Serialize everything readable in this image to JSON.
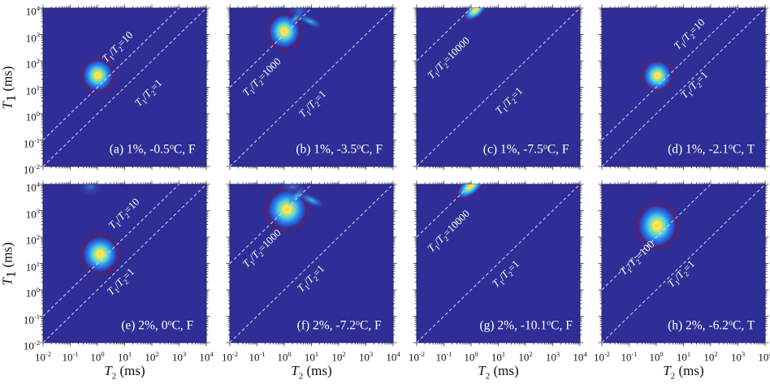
{
  "figure": {
    "description": "Eight-panel T1-T2 NMR correlation maps at different concentrations and temperatures",
    "background": "#ffffff"
  },
  "colors": {
    "panel_bg": "#2e2e96",
    "panel_border": "#23237d",
    "dashed_line": "#d8d8f8",
    "tick": "#2a2a2a",
    "axis_text": "#111111",
    "panel_text": "#ffffff",
    "blob_core": "#ffd23a",
    "blob_mid": "#46d2e8",
    "blob_outer": "#2f86e8",
    "blob_ring": "#701c52"
  },
  "axes": {
    "x_label_symbol": "T",
    "x_label_subscript": "2",
    "x_label_unit": " (ms)",
    "y_label_symbol": "T",
    "y_label_subscript": "1",
    "y_label_unit": " (ms)",
    "scale": "log-log",
    "x_range_ms": [
      0.01,
      10000
    ],
    "y_range_ms": [
      0.01,
      10000
    ],
    "x_tick_exponents": [
      -2,
      -1,
      0,
      1,
      2,
      3,
      4
    ],
    "y_tick_exponents": [
      4,
      3,
      2,
      1,
      0,
      -1,
      -2
    ]
  },
  "chart_data": {
    "type": "heatmap",
    "panels": [
      {
        "id": "a",
        "label": "(a) 1%, -0.5°C, F",
        "concentration": "1%",
        "temperature_c": -0.5,
        "state": "F",
        "peaks": [
          {
            "T2_ms": 1.0,
            "T1_ms": 28
          }
        ],
        "ratio_lines": [
          {
            "ratio": "10",
            "label_pos": [
              0.47,
              0.26
            ]
          },
          {
            "ratio": "1",
            "label_pos": [
              0.66,
              0.55
            ]
          }
        ],
        "blobs": [
          {
            "kind": "main",
            "logT2": 0.01,
            "logT1": 1.45,
            "rx": 0.7,
            "ry": 0.75,
            "rot": 0
          }
        ],
        "label_anchor": [
          0.67,
          0.915
        ]
      },
      {
        "id": "b",
        "label": "(b) 1%, -3.5°C, F",
        "concentration": "1%",
        "temperature_c": -3.5,
        "state": "F",
        "peaks": [
          {
            "T2_ms": 1.0,
            "T1_ms": 1300
          }
        ],
        "ratio_lines": [
          {
            "ratio": "1000",
            "label_pos": [
              0.21,
              0.45
            ]
          },
          {
            "ratio": "1",
            "label_pos": [
              0.52,
              0.62
            ]
          }
        ],
        "blobs": [
          {
            "kind": "main",
            "logT2": 0.0,
            "logT1": 3.12,
            "rx": 0.72,
            "ry": 0.8,
            "rot": 0
          },
          {
            "kind": "wing",
            "logT2": 0.42,
            "logT1": 3.62,
            "rx": 0.38,
            "ry": 0.15,
            "rot": -45
          },
          {
            "kind": "wing",
            "logT2": 0.95,
            "logT1": 3.5,
            "rx": 0.45,
            "ry": 0.16,
            "rot": 25
          },
          {
            "kind": "faint",
            "logT2": 0.55,
            "logT1": 3.9,
            "rx": 0.4,
            "ry": 0.28,
            "rot": 0
          }
        ],
        "label_anchor": [
          0.67,
          0.915
        ]
      },
      {
        "id": "c",
        "label": "(c) 1%, -7.5°C, F",
        "concentration": "1%",
        "temperature_c": -7.5,
        "state": "F",
        "peaks": [
          {
            "T2_ms": 1.4,
            "T1_ms": 8000
          }
        ],
        "ratio_lines": [
          {
            "ratio": "10000",
            "label_pos": [
              0.21,
              0.33
            ]
          },
          {
            "ratio": "1",
            "label_pos": [
              0.58,
              0.6
            ]
          }
        ],
        "blobs": [
          {
            "kind": "main",
            "logT2": 0.16,
            "logT1": 3.92,
            "rx": 0.62,
            "ry": 0.33,
            "rot": -40
          }
        ],
        "label_anchor": [
          0.67,
          0.915
        ]
      },
      {
        "id": "d",
        "label": "(d) 1%, -2.1°C, T",
        "concentration": "1%",
        "temperature_c": -2.1,
        "state": "T",
        "peaks": [
          {
            "T2_ms": 1.1,
            "T1_ms": 28
          }
        ],
        "ratio_lines": [
          {
            "ratio": "10",
            "label_pos": [
              0.55,
              0.18
            ]
          },
          {
            "ratio": "1",
            "label_pos": [
              0.58,
              0.5
            ]
          }
        ],
        "blobs": [
          {
            "kind": "main",
            "logT2": 0.04,
            "logT1": 1.44,
            "rx": 0.66,
            "ry": 0.7,
            "rot": 0
          }
        ],
        "label_anchor": [
          0.67,
          0.915
        ]
      },
      {
        "id": "e",
        "label": "(e) 2%, 0°C, F",
        "concentration": "2%",
        "temperature_c": 0,
        "state": "F",
        "peaks": [
          {
            "T2_ms": 1.3,
            "T1_ms": 22
          },
          {
            "T2_ms": 0.6,
            "T1_ms": 8000
          }
        ],
        "ratio_lines": [
          {
            "ratio": "10",
            "label_pos": [
              0.51,
              0.2
            ]
          },
          {
            "ratio": "1",
            "label_pos": [
              0.49,
              0.63
            ]
          }
        ],
        "blobs": [
          {
            "kind": "main",
            "logT2": 0.1,
            "logT1": 1.35,
            "rx": 0.82,
            "ry": 0.85,
            "rot": 0
          },
          {
            "kind": "faint",
            "logT2": -0.25,
            "logT1": 3.9,
            "rx": 0.45,
            "ry": 0.33,
            "rot": 0
          }
        ],
        "label_anchor": [
          0.7,
          0.915
        ]
      },
      {
        "id": "f",
        "label": "(f) 2%, -7.2°C, F",
        "concentration": "2%",
        "temperature_c": -7.2,
        "state": "F",
        "peaks": [
          {
            "T2_ms": 1.3,
            "T1_ms": 1100
          }
        ],
        "ratio_lines": [
          {
            "ratio": "1000",
            "label_pos": [
              0.21,
              0.42
            ]
          },
          {
            "ratio": "1",
            "label_pos": [
              0.51,
              0.61
            ]
          }
        ],
        "blobs": [
          {
            "kind": "main",
            "logT2": 0.1,
            "logT1": 3.05,
            "rx": 0.9,
            "ry": 0.92,
            "rot": 0
          },
          {
            "kind": "wing",
            "logT2": 0.45,
            "logT1": 3.55,
            "rx": 0.45,
            "ry": 0.17,
            "rot": -45
          },
          {
            "kind": "wing",
            "logT2": 1.0,
            "logT1": 3.4,
            "rx": 0.5,
            "ry": 0.18,
            "rot": 25
          },
          {
            "kind": "faint",
            "logT2": 0.3,
            "logT1": 3.9,
            "rx": 0.45,
            "ry": 0.3,
            "rot": 0
          }
        ],
        "label_anchor": [
          0.67,
          0.915
        ]
      },
      {
        "id": "g",
        "label": "(g) 2%, -10.1°C, F",
        "concentration": "2%",
        "temperature_c": -10.1,
        "state": "F",
        "peaks": [
          {
            "T2_ms": 0.95,
            "T1_ms": 9000
          }
        ],
        "ratio_lines": [
          {
            "ratio": "10000",
            "label_pos": [
              0.21,
              0.31
            ]
          },
          {
            "ratio": "1",
            "label_pos": [
              0.56,
              0.58
            ]
          }
        ],
        "blobs": [
          {
            "kind": "main",
            "logT2": -0.02,
            "logT1": 3.92,
            "rx": 0.75,
            "ry": 0.38,
            "rot": -40
          }
        ],
        "label_anchor": [
          0.67,
          0.915
        ]
      },
      {
        "id": "h",
        "label": "(h) 2%, -6.2°C, T",
        "concentration": "2%",
        "temperature_c": -6.2,
        "state": "T",
        "peaks": [
          {
            "T2_ms": 1.1,
            "T1_ms": 270
          }
        ],
        "ratio_lines": [
          {
            "ratio": "100",
            "label_pos": [
              0.23,
              0.48
            ]
          },
          {
            "ratio": "1",
            "label_pos": [
              0.5,
              0.58
            ]
          }
        ],
        "blobs": [
          {
            "kind": "main",
            "logT2": 0.03,
            "logT1": 2.43,
            "rx": 0.88,
            "ry": 1.0,
            "rot": 0
          }
        ],
        "label_anchor": [
          0.67,
          0.915
        ]
      }
    ]
  }
}
